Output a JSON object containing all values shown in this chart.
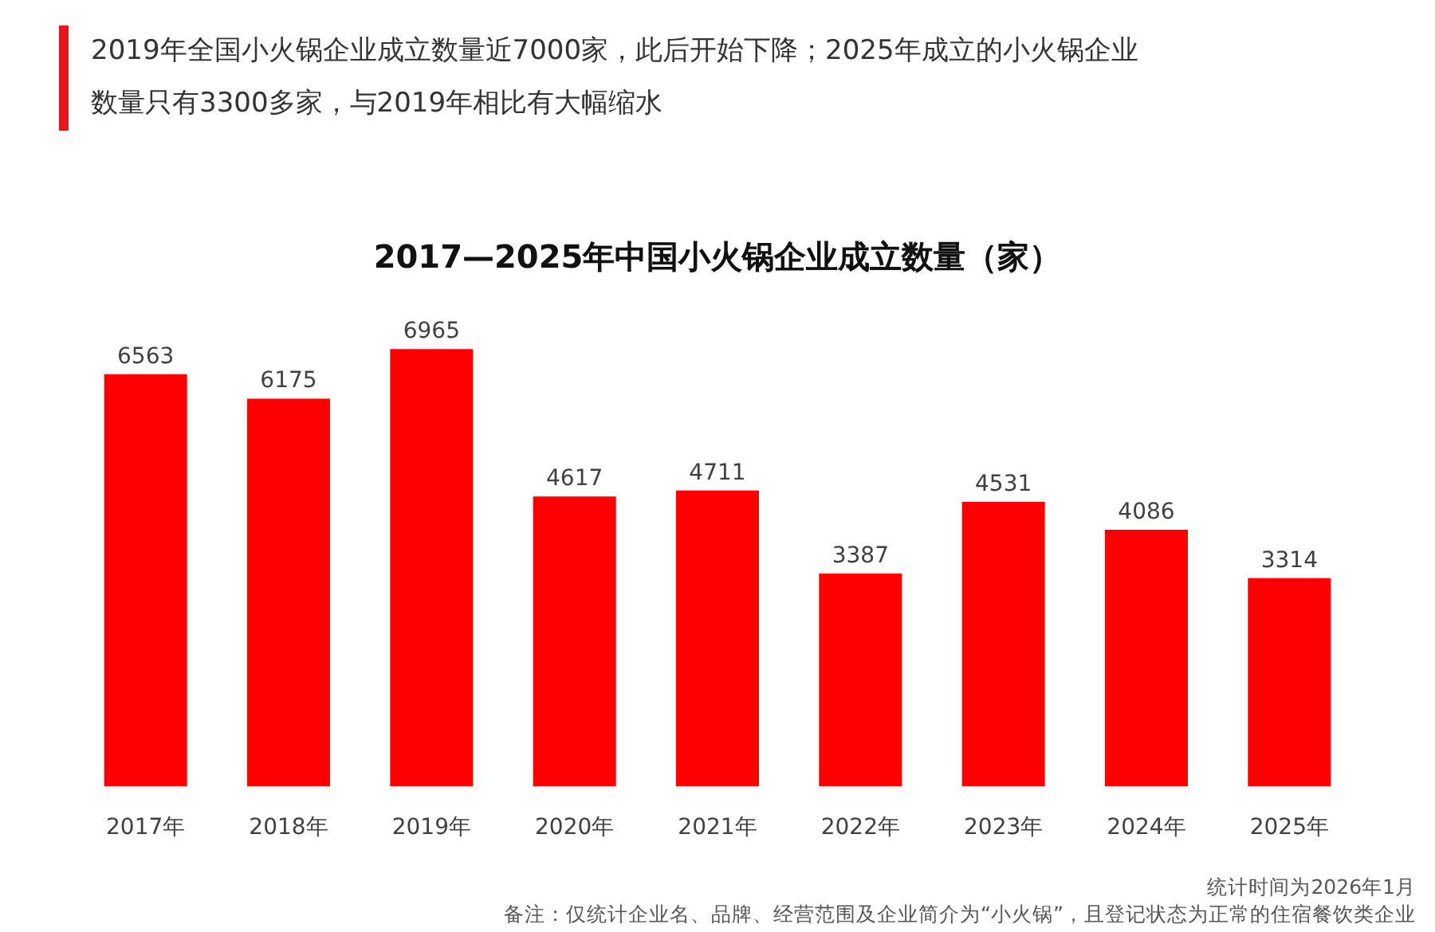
{
  "chart_data": {
    "type": "bar",
    "subtitle": "2019年全国小火锅企业成立数量近7000家，此后开始下降；2025年成立的小火锅企业数量只有3300多家，与2019年相比有大幅缩水",
    "title": "2017—2025年中国小火锅企业成立数量（家）",
    "categories": [
      "2017年",
      "2018年",
      "2019年",
      "2020年",
      "2021年",
      "2022年",
      "2023年",
      "2024年",
      "2025年"
    ],
    "values": [
      6563,
      6175,
      6965,
      4617,
      4711,
      3387,
      4531,
      4086,
      3314
    ],
    "color": "#ff0000",
    "data_labels": true,
    "tick_labels": "x",
    "annotations": [
      "统计时间为2026年1月",
      "备注：仅统计企业名、品牌、经营范围及企业简介为“小火锅”，且登记状态为正常的住宿餐饮类企业"
    ]
  }
}
